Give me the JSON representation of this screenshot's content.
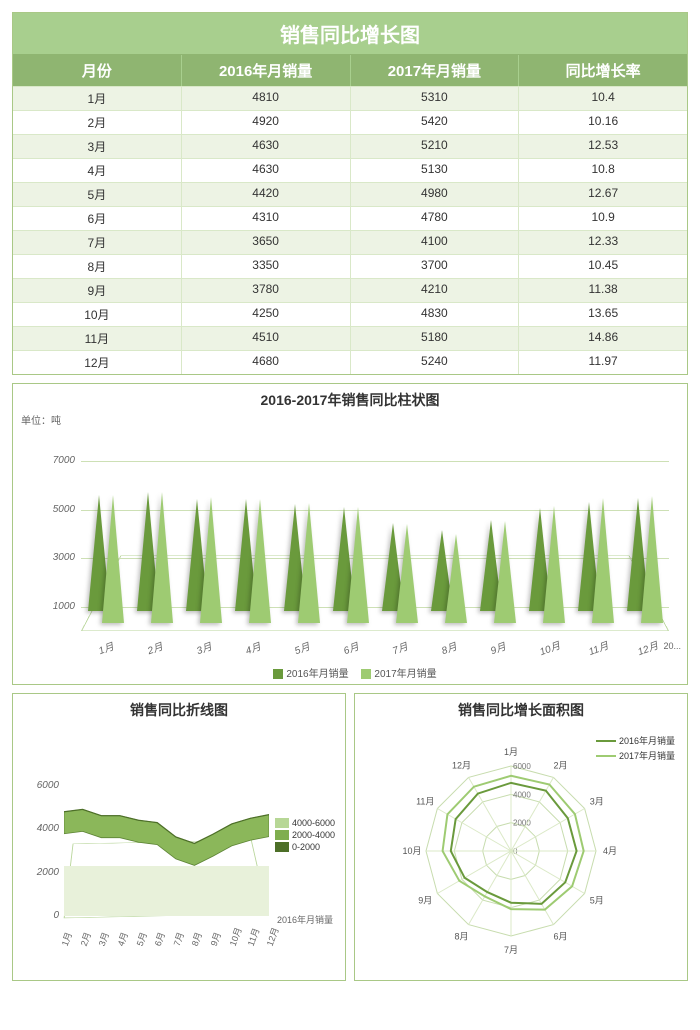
{
  "colors": {
    "header_band": "#a8cf8e",
    "header_row": "#8fb571",
    "grid": "#cde0b5",
    "cone_2016": "#6a9a3c",
    "cone_2017": "#9ecb72",
    "ribbon_top": "#8bb75a",
    "ribbon_mid": "#6f9a3c",
    "ribbon_dark": "#4d6f28",
    "radar_line1": "#6a9a3c",
    "radar_line2": "#9ecb72"
  },
  "title": "销售同比增长图",
  "table": {
    "columns": [
      "月份",
      "2016年月销量",
      "2017年月销量",
      "同比增长率"
    ],
    "rows": [
      [
        "1月",
        4810,
        5310,
        "10.4"
      ],
      [
        "2月",
        4920,
        5420,
        "10.16"
      ],
      [
        "3月",
        4630,
        5210,
        "12.53"
      ],
      [
        "4月",
        4630,
        5130,
        "10.8"
      ],
      [
        "5月",
        4420,
        4980,
        "12.67"
      ],
      [
        "6月",
        4310,
        4780,
        "10.9"
      ],
      [
        "7月",
        3650,
        4100,
        "12.33"
      ],
      [
        "8月",
        3350,
        3700,
        "10.45"
      ],
      [
        "9月",
        3780,
        4210,
        "11.38"
      ],
      [
        "10月",
        4250,
        4830,
        "13.65"
      ],
      [
        "11月",
        4510,
        5180,
        "14.86"
      ],
      [
        "12月",
        4680,
        5240,
        "11.97"
      ]
    ]
  },
  "bar_chart": {
    "title": "2016-2017年销售同比柱状图",
    "unit": "单位：吨",
    "yticks": [
      1000,
      3000,
      5000,
      7000
    ],
    "ymax": 7000,
    "legend": [
      "2016年月销量",
      "2017年月销量"
    ],
    "side_label": "20..."
  },
  "line_chart": {
    "title": "销售同比折线图",
    "yticks": [
      0,
      2000,
      4000,
      6000
    ],
    "ymax": 6000,
    "legend": [
      "4000-6000",
      "2000-4000",
      "0-2000"
    ],
    "side_label": "2016年月销量"
  },
  "radar_chart": {
    "title": "销售同比增长面积图",
    "rings": [
      0,
      2000,
      4000,
      6000
    ],
    "max": 6000,
    "legend": [
      "2016年月销量",
      "2017年月销量"
    ]
  }
}
